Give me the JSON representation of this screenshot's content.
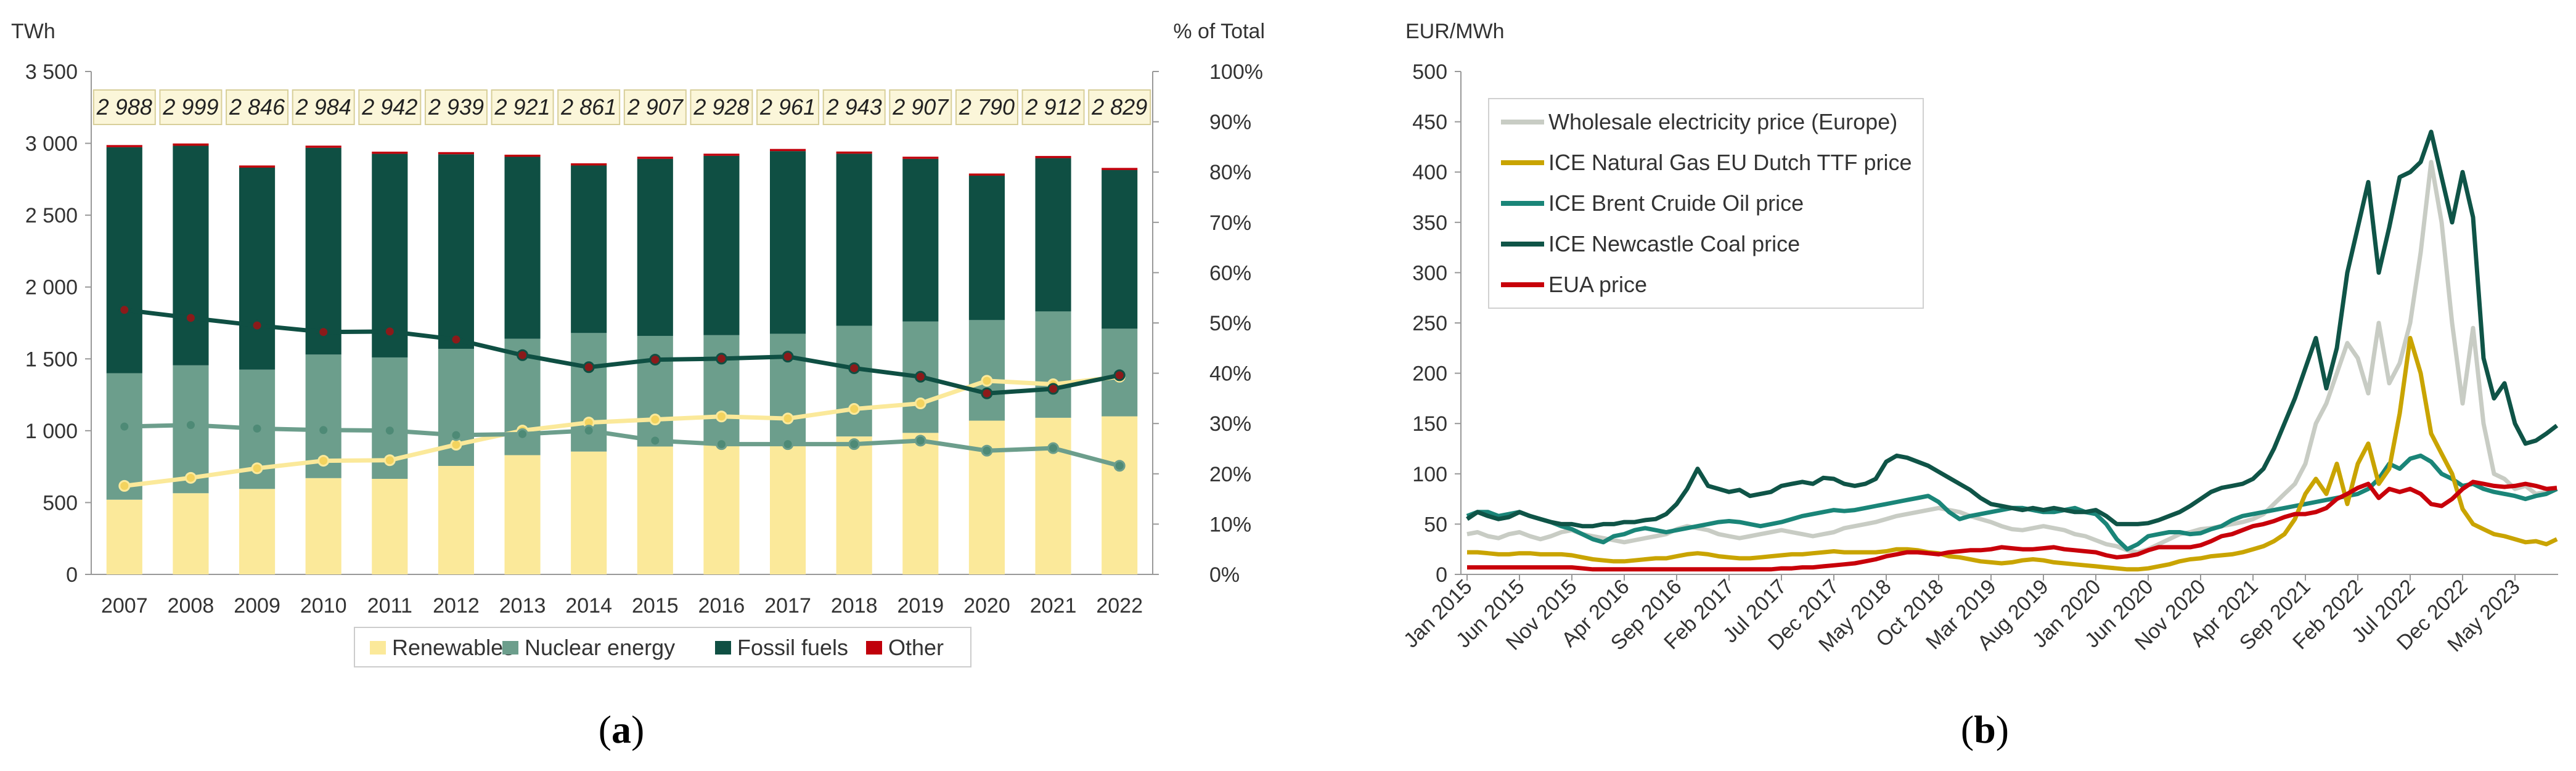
{
  "chart_data": [
    {
      "type": "bar",
      "stacked": true,
      "panel_caption": {
        "open": "(",
        "letter": "a",
        "close": ")"
      },
      "unit_left": "TWh",
      "unit_right": "% of Total",
      "ylim": [
        0,
        3500
      ],
      "yticks": [
        "0",
        "500",
        "1 000",
        "1 500",
        "2 000",
        "2 500",
        "3 000",
        "3 500"
      ],
      "ytick_values": [
        0,
        500,
        1000,
        1500,
        2000,
        2500,
        3000,
        3500
      ],
      "y2lim": [
        0,
        100
      ],
      "y2ticks": [
        "0%",
        "10%",
        "20%",
        "30%",
        "40%",
        "50%",
        "60%",
        "70%",
        "80%",
        "90%",
        "100%"
      ],
      "y2tick_values": [
        0,
        10,
        20,
        30,
        40,
        50,
        60,
        70,
        80,
        90,
        100
      ],
      "categories": [
        "2007",
        "2008",
        "2009",
        "2010",
        "2011",
        "2012",
        "2013",
        "2014",
        "2015",
        "2016",
        "2017",
        "2018",
        "2019",
        "2020",
        "2021",
        "2022"
      ],
      "totals": [
        "2 988",
        "2 999",
        "2 846",
        "2 984",
        "2 942",
        "2 939",
        "2 921",
        "2 861",
        "2 907",
        "2 928",
        "2 961",
        "2 943",
        "2 907",
        "2 790",
        "2 912",
        "2 829"
      ],
      "series": [
        {
          "name": "Renewables",
          "color": "#fbe99a",
          "values": [
            520,
            565,
            595,
            670,
            665,
            755,
            830,
            855,
            890,
            915,
            915,
            960,
            985,
            1070,
            1090,
            1100
          ]
        },
        {
          "name": "Nuclear energy",
          "color": "#6c9e8c",
          "values": [
            880,
            890,
            830,
            860,
            845,
            815,
            810,
            825,
            770,
            750,
            760,
            770,
            775,
            700,
            740,
            610
          ]
        },
        {
          "name": "Fossil fuels",
          "color": "#0f4f43",
          "values": [
            1573,
            1528,
            1406,
            1439,
            1417,
            1354,
            1266,
            1166,
            1232,
            1248,
            1271,
            1198,
            1132,
            1005,
            1067,
            1104
          ]
        },
        {
          "name": "Other",
          "color": "#c0000b",
          "values": [
            15,
            16,
            15,
            15,
            15,
            15,
            15,
            15,
            15,
            15,
            15,
            15,
            15,
            15,
            15,
            15
          ]
        }
      ],
      "share_lines": [
        {
          "name": "Renewables share (%)",
          "color": "#fbe99a",
          "marker": "#f3d35e",
          "values": [
            17.6,
            19.2,
            21.1,
            22.6,
            22.7,
            25.8,
            28.6,
            30.2,
            30.8,
            31.4,
            31.0,
            32.9,
            34.0,
            38.5,
            37.8,
            39.3
          ]
        },
        {
          "name": "Nuclear share (%)",
          "color": "#6c9e8c",
          "marker": "#4e8a76",
          "values": [
            29.4,
            29.7,
            29.0,
            28.7,
            28.6,
            27.7,
            27.9,
            28.6,
            26.6,
            25.9,
            25.9,
            25.9,
            26.6,
            24.6,
            25.1,
            21.6
          ]
        },
        {
          "name": "Fossil share (%)",
          "color": "#0f4f43",
          "marker": "#8b1a1a",
          "values": [
            52.6,
            51.0,
            49.5,
            48.2,
            48.3,
            46.7,
            43.6,
            41.2,
            42.7,
            42.9,
            43.3,
            41.0,
            39.3,
            36.0,
            36.9,
            39.6
          ]
        }
      ]
    },
    {
      "type": "line",
      "panel_caption": {
        "open": "(",
        "letter": "b",
        "close": ")"
      },
      "unit_left": "EUR/MWh",
      "ylim": [
        0,
        500
      ],
      "yticks": [
        "0",
        "50",
        "100",
        "150",
        "200",
        "250",
        "300",
        "350",
        "400",
        "450",
        "500"
      ],
      "ytick_values": [
        0,
        50,
        100,
        150,
        200,
        250,
        300,
        350,
        400,
        450,
        500
      ],
      "x_start": "Jan 2015",
      "x_end": "Sep 2023",
      "x_months": 105,
      "xtick_labels": [
        "Jan 2015",
        "Jun 2015",
        "Nov 2015",
        "Apr 2016",
        "Sep 2016",
        "Feb 2017",
        "Jul 2017",
        "Dec 2017",
        "May 2018",
        "Oct 2018",
        "Mar 2019",
        "Aug 2019",
        "Jan 2020",
        "Jun 2020",
        "Nov 2020",
        "Apr 2021",
        "Sep 2021",
        "Feb 2022",
        "Jul 2022",
        "Dec 2022",
        "May 2023"
      ],
      "xtick_months": [
        0,
        5,
        10,
        15,
        20,
        25,
        30,
        35,
        40,
        45,
        50,
        55,
        60,
        65,
        70,
        75,
        80,
        85,
        90,
        95,
        100
      ],
      "series": [
        {
          "name": "Wholesale electricity price (Europe)",
          "color": "#c8ccc4",
          "values": [
            40,
            42,
            38,
            36,
            40,
            42,
            38,
            35,
            38,
            42,
            44,
            40,
            38,
            36,
            34,
            32,
            34,
            36,
            38,
            40,
            45,
            48,
            46,
            44,
            40,
            38,
            36,
            38,
            40,
            42,
            44,
            42,
            40,
            38,
            40,
            42,
            46,
            48,
            50,
            52,
            55,
            58,
            60,
            62,
            64,
            66,
            64,
            62,
            58,
            55,
            52,
            48,
            45,
            44,
            46,
            48,
            46,
            44,
            40,
            38,
            34,
            30,
            28,
            24,
            22,
            25,
            30,
            35,
            40,
            42,
            45,
            46,
            48,
            50,
            52,
            55,
            60,
            70,
            80,
            90,
            110,
            150,
            170,
            200,
            230,
            215,
            180,
            250,
            190,
            210,
            250,
            320,
            410,
            350,
            250,
            170,
            245,
            150,
            100,
            95,
            85,
            88,
            80,
            82,
            85
          ]
        },
        {
          "name": "ICE Natural Gas EU Dutch TTF price",
          "color": "#c9a400",
          "values": [
            22,
            22,
            21,
            20,
            20,
            21,
            21,
            20,
            20,
            20,
            19,
            17,
            15,
            14,
            13,
            13,
            14,
            15,
            16,
            16,
            18,
            20,
            21,
            20,
            18,
            17,
            16,
            16,
            17,
            18,
            19,
            20,
            20,
            21,
            22,
            23,
            22,
            22,
            22,
            22,
            23,
            25,
            25,
            24,
            22,
            21,
            18,
            17,
            15,
            13,
            12,
            11,
            12,
            14,
            15,
            14,
            12,
            11,
            10,
            9,
            8,
            7,
            6,
            5,
            5,
            6,
            8,
            10,
            13,
            15,
            16,
            18,
            19,
            20,
            22,
            25,
            28,
            33,
            40,
            55,
            80,
            95,
            80,
            110,
            70,
            110,
            130,
            90,
            105,
            160,
            235,
            200,
            140,
            120,
            100,
            65,
            50,
            45,
            40,
            38,
            35,
            32,
            33,
            30,
            35
          ]
        },
        {
          "name": "ICE Brent Cruide Oil price",
          "color": "#1a8578",
          "values": [
            58,
            62,
            62,
            58,
            60,
            62,
            58,
            55,
            52,
            48,
            45,
            40,
            35,
            32,
            38,
            40,
            44,
            46,
            44,
            42,
            44,
            46,
            48,
            50,
            52,
            53,
            52,
            50,
            48,
            50,
            52,
            55,
            58,
            60,
            62,
            64,
            63,
            64,
            66,
            68,
            70,
            72,
            74,
            76,
            78,
            72,
            62,
            55,
            58,
            60,
            62,
            64,
            66,
            66,
            64,
            62,
            62,
            64,
            66,
            62,
            60,
            50,
            35,
            25,
            30,
            38,
            40,
            42,
            42,
            40,
            41,
            45,
            48,
            54,
            58,
            60,
            62,
            64,
            66,
            68,
            70,
            72,
            74,
            76,
            78,
            80,
            85,
            95,
            110,
            105,
            115,
            118,
            112,
            100,
            95,
            88,
            90,
            85,
            82,
            80,
            78,
            75,
            78,
            80,
            85
          ]
        },
        {
          "name": "ICE Newcastle Coal price",
          "color": "#0f5447",
          "values": [
            55,
            62,
            58,
            55,
            57,
            62,
            58,
            55,
            52,
            50,
            50,
            48,
            48,
            50,
            50,
            52,
            52,
            54,
            55,
            60,
            70,
            85,
            105,
            88,
            85,
            82,
            84,
            78,
            80,
            82,
            88,
            90,
            92,
            90,
            96,
            95,
            90,
            88,
            90,
            95,
            112,
            118,
            116,
            112,
            108,
            102,
            96,
            90,
            84,
            76,
            70,
            68,
            66,
            64,
            66,
            64,
            66,
            64,
            62,
            62,
            64,
            58,
            50,
            50,
            50,
            51,
            54,
            58,
            62,
            68,
            75,
            82,
            86,
            88,
            90,
            95,
            105,
            125,
            150,
            175,
            205,
            235,
            185,
            225,
            300,
            345,
            390,
            300,
            345,
            395,
            400,
            410,
            440,
            395,
            350,
            400,
            355,
            215,
            175,
            190,
            150,
            130,
            133,
            140,
            148
          ]
        },
        {
          "name": "EUA price",
          "color": "#c8000a",
          "values": [
            7,
            7,
            7,
            7,
            7,
            7,
            7,
            7,
            7,
            7,
            7,
            6,
            5,
            5,
            5,
            5,
            5,
            5,
            5,
            5,
            5,
            5,
            5,
            5,
            5,
            5,
            5,
            5,
            5,
            5,
            6,
            6,
            7,
            7,
            8,
            9,
            10,
            11,
            13,
            15,
            18,
            20,
            22,
            22,
            21,
            20,
            22,
            23,
            24,
            24,
            25,
            27,
            26,
            25,
            25,
            26,
            27,
            25,
            24,
            23,
            22,
            19,
            17,
            18,
            20,
            24,
            27,
            27,
            27,
            27,
            29,
            33,
            38,
            40,
            44,
            48,
            50,
            53,
            57,
            60,
            60,
            62,
            66,
            75,
            80,
            86,
            90,
            76,
            85,
            82,
            85,
            80,
            70,
            68,
            75,
            85,
            92,
            90,
            88,
            87,
            88,
            90,
            88,
            85,
            86
          ]
        }
      ]
    }
  ]
}
